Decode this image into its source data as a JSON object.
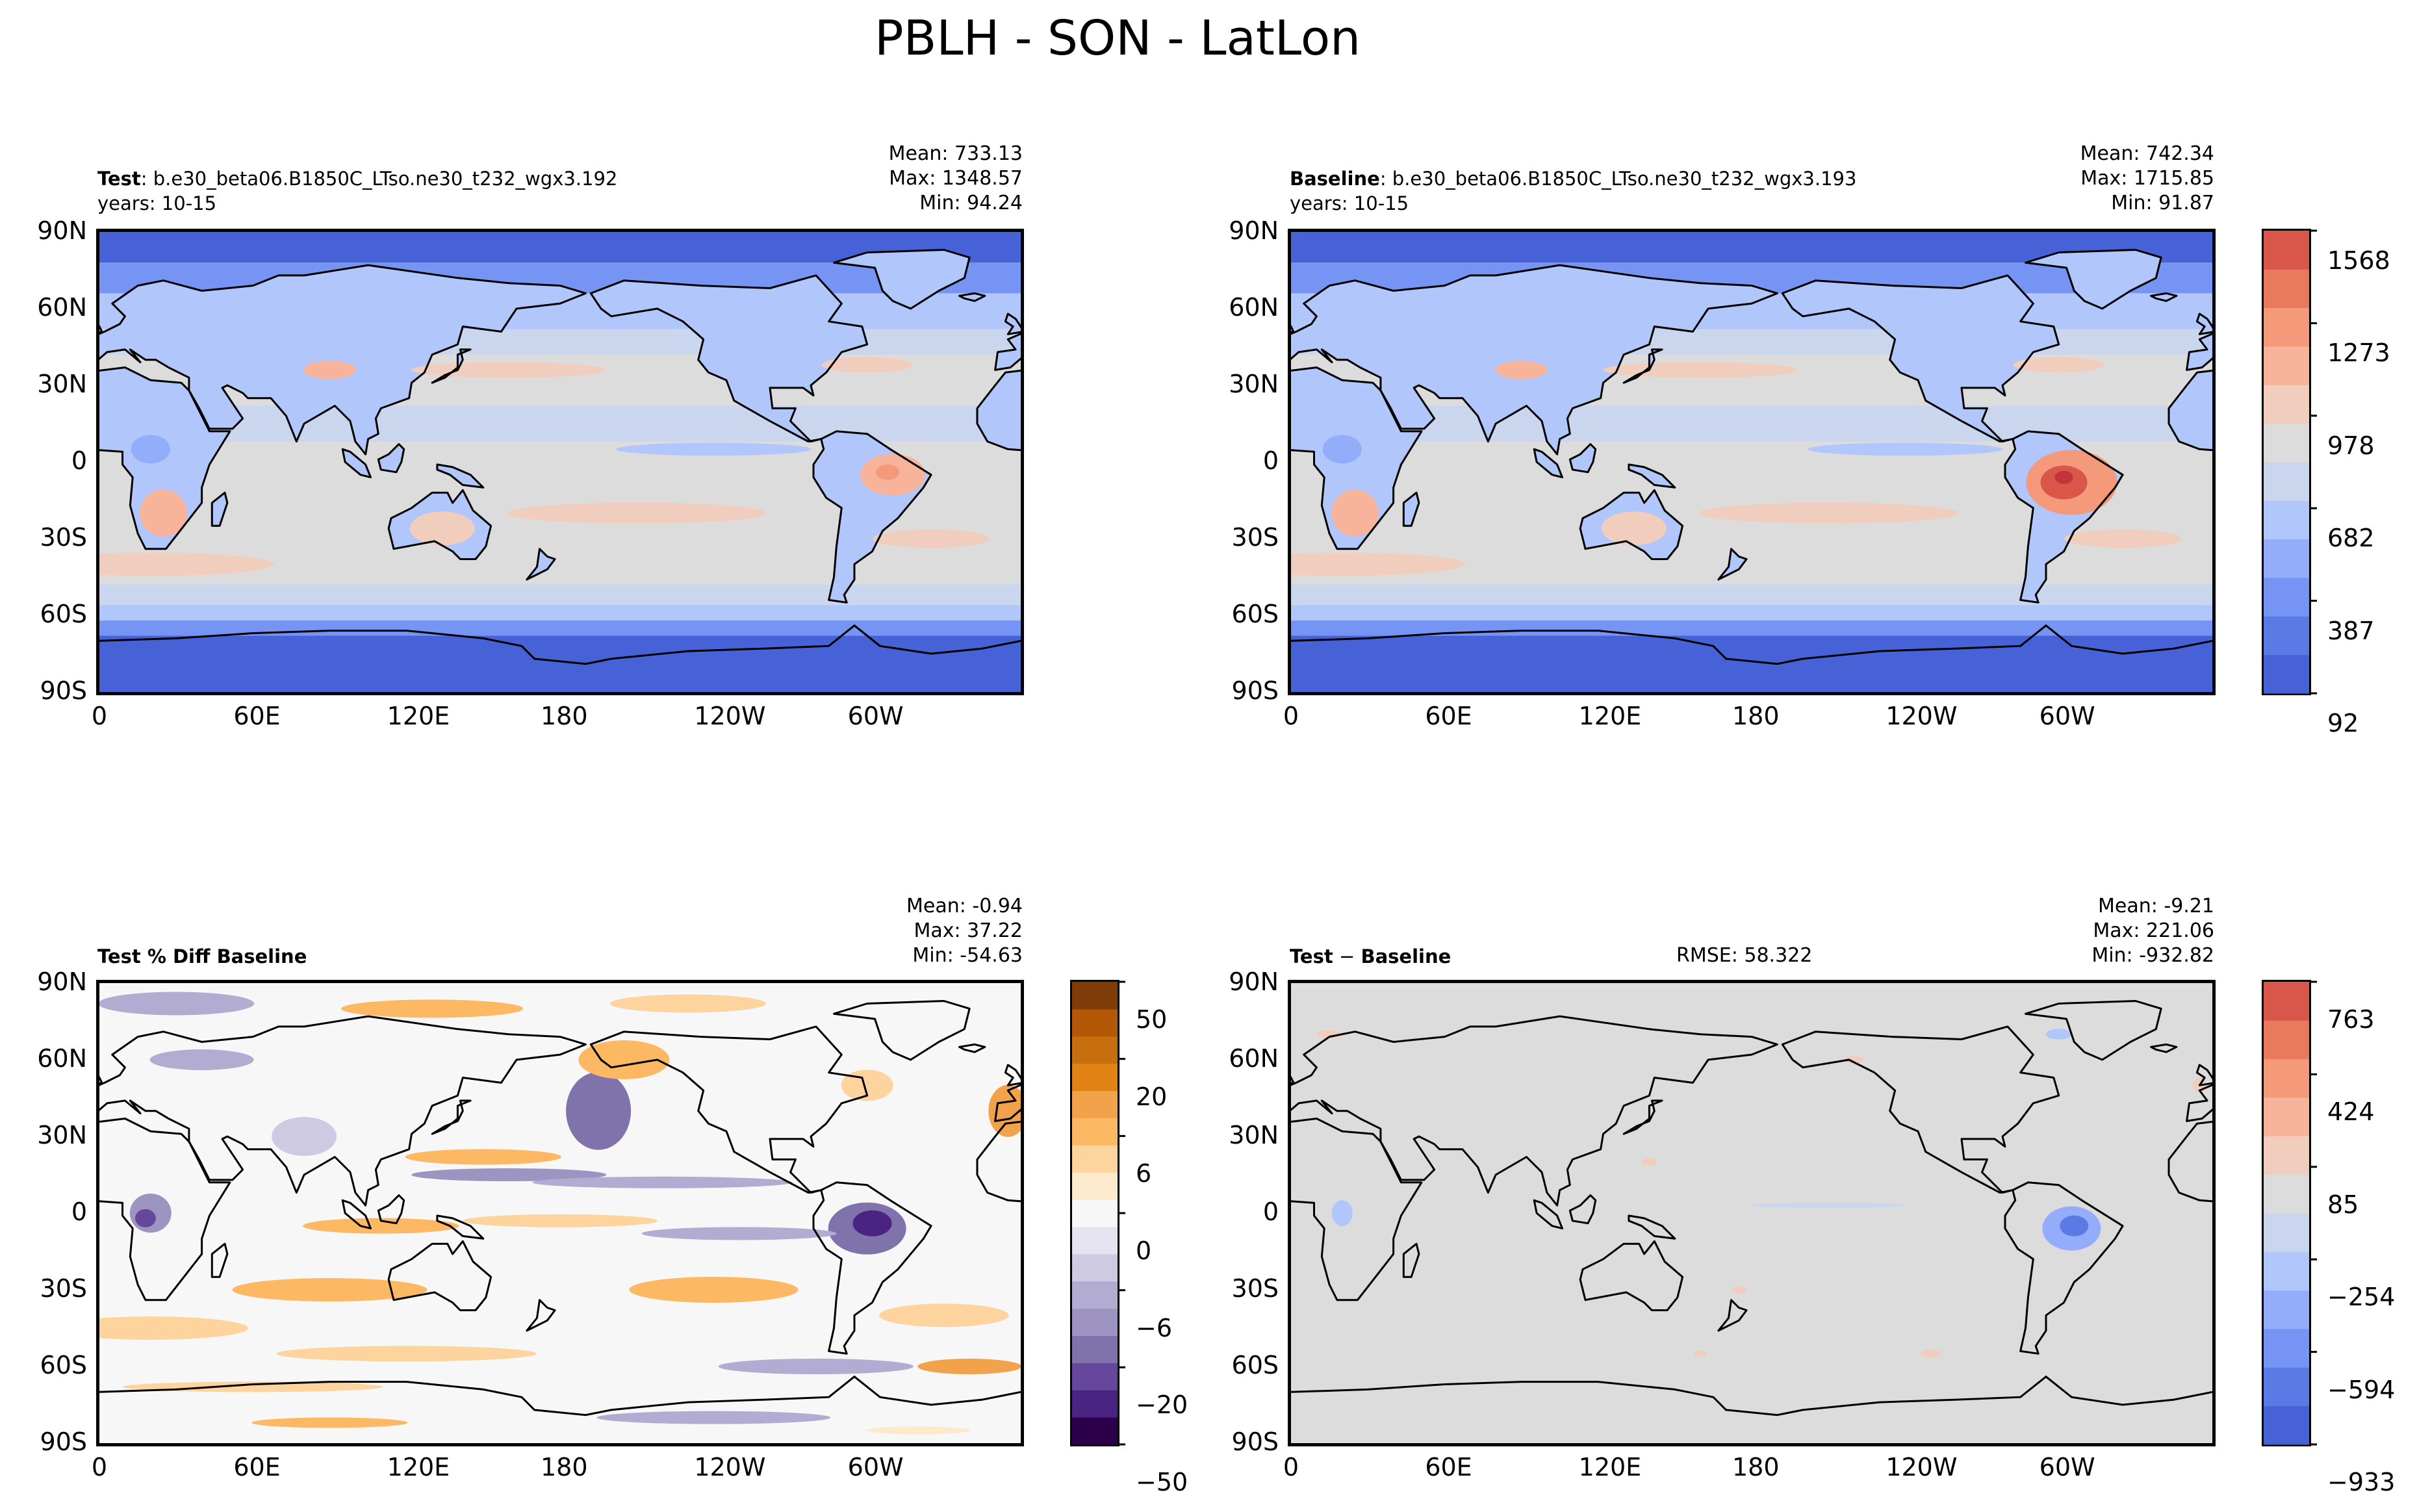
{
  "chart_data": [
    {
      "type": "heatmap",
      "panel": "test",
      "head": {
        "bold": "Test",
        "rest": ": b.e30_beta06.B1850C_LTso.ne30_t232_wgx3.192",
        "years": "years: 10-15"
      },
      "stats": {
        "mean": "Mean: 733.13",
        "max": "Max: 1348.57",
        "min": "Min: 94.24"
      },
      "palette": "coolwarm",
      "xticks": [
        "0",
        "60E",
        "120E",
        "180",
        "120W",
        "60W"
      ],
      "yticks": [
        "90N",
        "60N",
        "30N",
        "0",
        "30S",
        "60S",
        "90S"
      ]
    },
    {
      "type": "heatmap",
      "panel": "baseline",
      "head": {
        "bold": "Baseline",
        "rest": ": b.e30_beta06.B1850C_LTso.ne30_t232_wgx3.193",
        "years": "years: 10-15"
      },
      "stats": {
        "mean": "Mean: 742.34",
        "max": "Max: 1715.85",
        "min": "Min: 91.87"
      },
      "palette": "coolwarm",
      "xticks": [
        "0",
        "60E",
        "120E",
        "180",
        "120W",
        "60W"
      ],
      "yticks": [
        "90N",
        "60N",
        "30N",
        "0",
        "30S",
        "60S",
        "90S"
      ],
      "colorbar": {
        "ticks": [
          "1568",
          "1273",
          "978",
          "682",
          "387",
          "92"
        ],
        "range": [
          92,
          1716
        ]
      }
    },
    {
      "type": "heatmap",
      "panel": "pctdiff",
      "head": {
        "bold": "Test % Diff Baseline"
      },
      "stats": {
        "mean": "Mean: -0.94",
        "max": "Max: 37.22",
        "min": "Min: -54.63"
      },
      "palette": "PuOr",
      "xticks": [
        "0",
        "60E",
        "120E",
        "180",
        "120W",
        "60W"
      ],
      "yticks": [
        "90N",
        "60N",
        "30N",
        "0",
        "30S",
        "60S",
        "90S"
      ],
      "colorbar": {
        "ticks": [
          "50",
          "20",
          "6",
          "0",
          "−6",
          "−20",
          "−50"
        ],
        "range": [
          -60,
          60
        ]
      }
    },
    {
      "type": "heatmap",
      "panel": "diff",
      "head": {
        "bold": "Test",
        "rest": " − ",
        "bold2": "Baseline"
      },
      "rmse": "RMSE: 58.322",
      "stats": {
        "mean": "Mean: -9.21",
        "max": "Max: 221.06",
        "min": "Min: -932.82"
      },
      "palette": "coolwarm",
      "xticks": [
        "0",
        "60E",
        "120E",
        "180",
        "120W",
        "60W"
      ],
      "yticks": [
        "90N",
        "60N",
        "30N",
        "0",
        "30S",
        "60S",
        "90S"
      ],
      "colorbar": {
        "ticks": [
          "763",
          "424",
          "85",
          "−254",
          "−594",
          "−933"
        ],
        "range": [
          -933,
          933
        ]
      }
    }
  ],
  "figure": {
    "title": "PBLH - SON - LatLon"
  },
  "colors": {
    "coolwarm": [
      "#4761d6",
      "#5b7ae6",
      "#7594f3",
      "#93adfb",
      "#b1c6fb",
      "#cad5ee",
      "#dcdcdc",
      "#f1cdbd",
      "#f7b49a",
      "#f49a7b",
      "#e97a5e",
      "#d9564a",
      "#c6323a"
    ],
    "puor": [
      "#2d004b",
      "#4b2483",
      "#65489c",
      "#8073ac",
      "#9e94c2",
      "#b2abd2",
      "#cfcae3",
      "#e6e4f0",
      "#f7f7f7",
      "#fde9cc",
      "#fdd49e",
      "#fdb863",
      "#f2a24a",
      "#e08214",
      "#c76f0f",
      "#b35806",
      "#7f3b08"
    ],
    "coast": "#000000"
  }
}
